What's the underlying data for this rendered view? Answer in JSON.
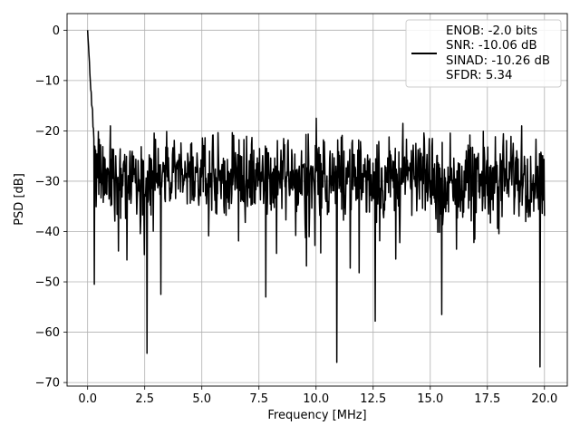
{
  "chart_data": {
    "type": "line",
    "title": "",
    "xlabel": "Frequency [MHz]",
    "ylabel": "PSD [dB]",
    "xlim": [
      -0.9,
      21.0
    ],
    "ylim": [
      -70.7,
      3.3
    ],
    "xticks": [
      0.0,
      2.5,
      5.0,
      7.5,
      10.0,
      12.5,
      15.0,
      17.5,
      20.0
    ],
    "xtick_labels": [
      "0.0",
      "2.5",
      "5.0",
      "7.5",
      "10.0",
      "12.5",
      "15.0",
      "17.5",
      "20.0"
    ],
    "yticks": [
      0,
      -10,
      -20,
      -30,
      -40,
      -50,
      -60,
      -70
    ],
    "ytick_labels": [
      "0",
      "−10",
      "−20",
      "−30",
      "−40",
      "−50",
      "−60",
      "−70"
    ],
    "grid": true,
    "legend_position": "top-right",
    "legend": [
      "ENOB: -2.0 bits",
      "SNR: -10.06 dB",
      "SINAD: -10.26 dB",
      "SFDR: 5.34"
    ],
    "series": [
      {
        "color": "#000000",
        "x_range": [
          0.0,
          20.0
        ],
        "points": 1024,
        "noise_floor_band_db": [
          -38,
          -20
        ],
        "peak": {
          "x": 0.0,
          "y": 0.0
        },
        "notable_minima": [
          {
            "x": 0.3,
            "y": -50.5
          },
          {
            "x": 2.6,
            "y": -64.2
          },
          {
            "x": 3.2,
            "y": -52.5
          },
          {
            "x": 7.8,
            "y": -53.0
          },
          {
            "x": 10.9,
            "y": -66.0
          },
          {
            "x": 12.6,
            "y": -57.8
          },
          {
            "x": 15.5,
            "y": -56.5
          },
          {
            "x": 19.8,
            "y": -66.9
          }
        ],
        "notable_maxima": [
          {
            "x": 1.0,
            "y": -19.0
          },
          {
            "x": 10.0,
            "y": -17.5
          },
          {
            "x": 13.8,
            "y": -18.5
          },
          {
            "x": 19.0,
            "y": -19.0
          }
        ]
      }
    ]
  }
}
